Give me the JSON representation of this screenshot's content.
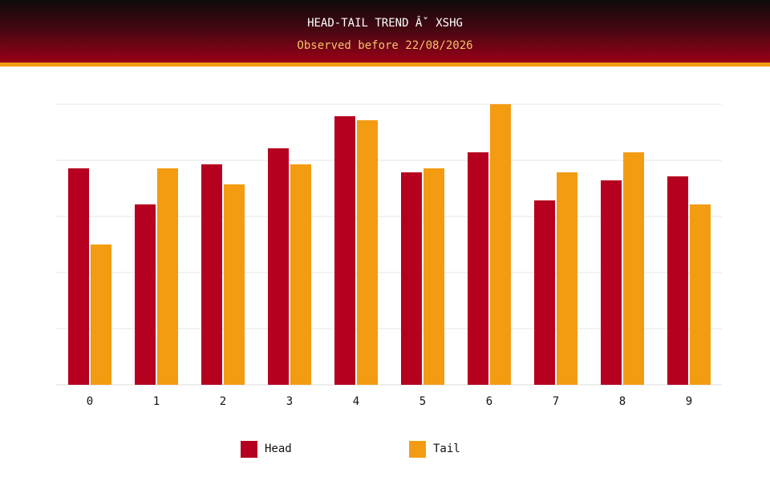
{
  "header": {
    "title": "HEAD-TAIL TREND Âˇ XSHG",
    "subtitle": "Observed before 22/08/2026"
  },
  "colors": {
    "head": "#b5001f",
    "tail": "#f39c12",
    "grid": "#e6e6e6"
  },
  "chart_data": {
    "type": "bar",
    "categories": [
      "0",
      "1",
      "2",
      "3",
      "4",
      "5",
      "6",
      "7",
      "8",
      "9"
    ],
    "series": [
      {
        "name": "Head",
        "values": [
          54,
          45,
          55,
          59,
          67,
          53,
          58,
          46,
          51,
          52
        ]
      },
      {
        "name": "Tail",
        "values": [
          35,
          54,
          50,
          55,
          66,
          54,
          70,
          53,
          58,
          45
        ]
      }
    ],
    "ylim": [
      0,
      70
    ],
    "grid": true,
    "legend_position": "bottom"
  }
}
